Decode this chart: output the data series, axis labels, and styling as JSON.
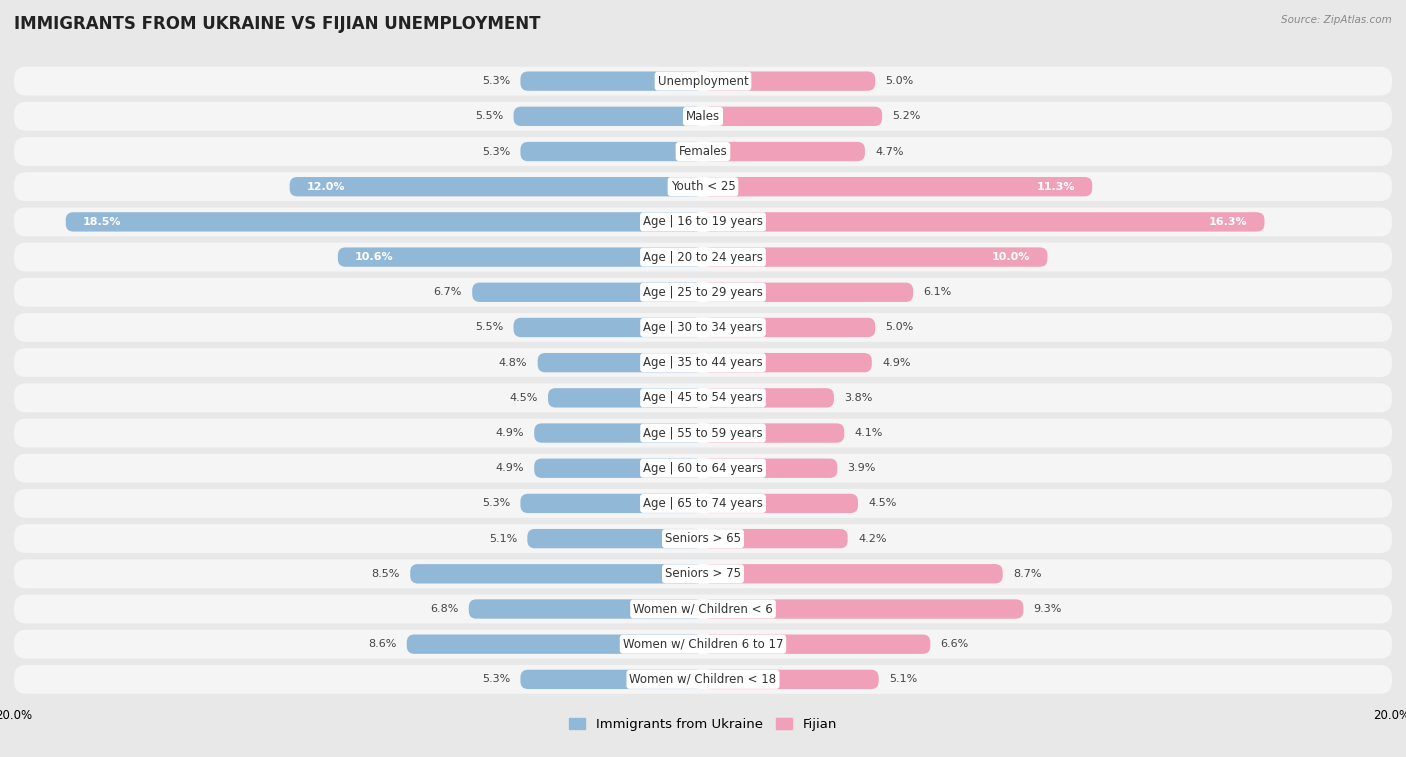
{
  "title": "IMMIGRANTS FROM UKRAINE VS FIJIAN UNEMPLOYMENT",
  "source": "Source: ZipAtlas.com",
  "categories": [
    "Unemployment",
    "Males",
    "Females",
    "Youth < 25",
    "Age | 16 to 19 years",
    "Age | 20 to 24 years",
    "Age | 25 to 29 years",
    "Age | 30 to 34 years",
    "Age | 35 to 44 years",
    "Age | 45 to 54 years",
    "Age | 55 to 59 years",
    "Age | 60 to 64 years",
    "Age | 65 to 74 years",
    "Seniors > 65",
    "Seniors > 75",
    "Women w/ Children < 6",
    "Women w/ Children 6 to 17",
    "Women w/ Children < 18"
  ],
  "ukraine_values": [
    5.3,
    5.5,
    5.3,
    12.0,
    18.5,
    10.6,
    6.7,
    5.5,
    4.8,
    4.5,
    4.9,
    4.9,
    5.3,
    5.1,
    8.5,
    6.8,
    8.6,
    5.3
  ],
  "fijian_values": [
    5.0,
    5.2,
    4.7,
    11.3,
    16.3,
    10.0,
    6.1,
    5.0,
    4.9,
    3.8,
    4.1,
    3.9,
    4.5,
    4.2,
    8.7,
    9.3,
    6.6,
    5.1
  ],
  "ukraine_color": "#92b8d8",
  "fijian_color": "#f0a0b8",
  "ukraine_label": "Immigrants from Ukraine",
  "fijian_label": "Fijian",
  "axis_max": 20.0,
  "background_color": "#e8e8e8",
  "bar_background": "#f5f5f5",
  "title_fontsize": 12,
  "label_fontsize": 8.5,
  "value_fontsize": 8,
  "legend_fontsize": 9.5
}
